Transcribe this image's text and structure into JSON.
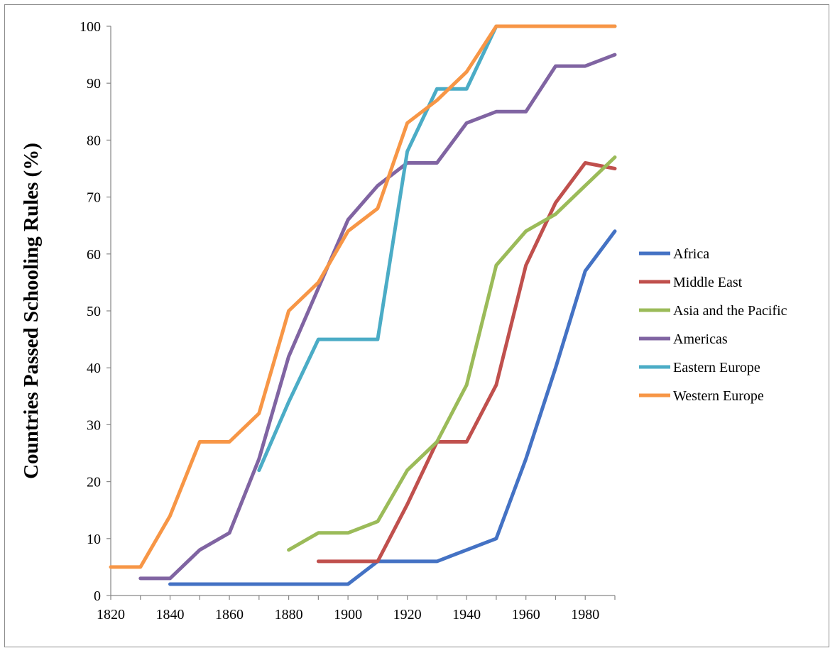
{
  "chart_data": {
    "type": "line",
    "title": "",
    "xlabel": "",
    "ylabel": "Countries Passed Schooling Rules (%)",
    "xlim": [
      1820,
      1990
    ],
    "ylim": [
      0,
      100
    ],
    "x_ticks": [
      1820,
      1840,
      1860,
      1880,
      1900,
      1920,
      1940,
      1960,
      1980
    ],
    "y_ticks": [
      0,
      10,
      20,
      30,
      40,
      50,
      60,
      70,
      80,
      90,
      100
    ],
    "grid": false,
    "legend_position": "right",
    "series": [
      {
        "name": "Africa",
        "color": "#4472C4",
        "x": [
          1840,
          1850,
          1860,
          1870,
          1880,
          1890,
          1900,
          1910,
          1920,
          1930,
          1940,
          1950,
          1960,
          1970,
          1980,
          1990
        ],
        "y": [
          2,
          2,
          2,
          2,
          2,
          2,
          2,
          6,
          6,
          6,
          8,
          10,
          24,
          40,
          57,
          64
        ]
      },
      {
        "name": "Middle East",
        "color": "#C0504D",
        "x": [
          1890,
          1900,
          1910,
          1920,
          1930,
          1940,
          1950,
          1960,
          1970,
          1980,
          1990
        ],
        "y": [
          6,
          6,
          6,
          16,
          27,
          27,
          37,
          58,
          69,
          76,
          75
        ]
      },
      {
        "name": "Asia and the Pacific",
        "color": "#9BBB59",
        "x": [
          1880,
          1890,
          1900,
          1910,
          1920,
          1930,
          1940,
          1950,
          1960,
          1970,
          1980,
          1990
        ],
        "y": [
          8,
          11,
          11,
          13,
          22,
          27,
          37,
          58,
          64,
          67,
          72,
          77
        ]
      },
      {
        "name": "Americas",
        "color": "#8064A2",
        "x": [
          1830,
          1840,
          1850,
          1860,
          1870,
          1880,
          1890,
          1900,
          1910,
          1920,
          1930,
          1940,
          1950,
          1960,
          1970,
          1980,
          1990
        ],
        "y": [
          3,
          3,
          8,
          11,
          24,
          42,
          54,
          66,
          72,
          76,
          76,
          83,
          85,
          85,
          93,
          93,
          95
        ]
      },
      {
        "name": "Eastern Europe",
        "color": "#4BACC6",
        "x": [
          1870,
          1880,
          1890,
          1900,
          1910,
          1920,
          1930,
          1940,
          1950,
          1960,
          1970,
          1980,
          1990
        ],
        "y": [
          22,
          34,
          45,
          45,
          45,
          78,
          89,
          89,
          100,
          100,
          100,
          100,
          100
        ]
      },
      {
        "name": "Western Europe",
        "color": "#F79646",
        "x": [
          1820,
          1830,
          1840,
          1850,
          1860,
          1870,
          1880,
          1890,
          1900,
          1910,
          1920,
          1930,
          1940,
          1950,
          1960,
          1970,
          1980,
          1990
        ],
        "y": [
          5,
          5,
          14,
          27,
          27,
          32,
          50,
          55,
          64,
          68,
          83,
          87,
          92,
          100,
          100,
          100,
          100,
          100
        ]
      }
    ]
  }
}
